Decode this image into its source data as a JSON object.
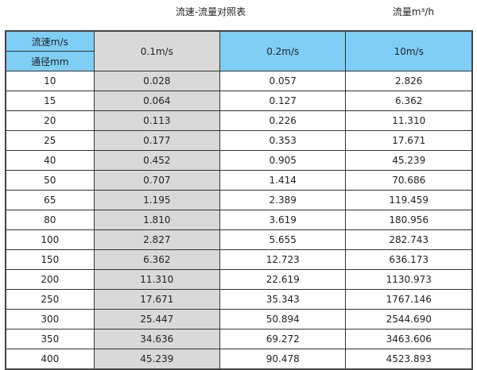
{
  "title": "流速-流量对照表",
  "unit_note": "流量m³/h",
  "header": {
    "velocity_label": "流速m/s",
    "diameter_label": "通径mm",
    "columns": [
      "0.1m/s",
      "0.2m/s",
      "10m/s"
    ]
  },
  "rows": [
    {
      "dn": "10",
      "v1": "0.028",
      "v2": "0.057",
      "v3": "2.826"
    },
    {
      "dn": "15",
      "v1": "0.064",
      "v2": "0.127",
      "v3": "6.362"
    },
    {
      "dn": "20",
      "v1": "0.113",
      "v2": "0.226",
      "v3": "11.310"
    },
    {
      "dn": "25",
      "v1": "0.177",
      "v2": "0.353",
      "v3": "17.671"
    },
    {
      "dn": "40",
      "v1": "0.452",
      "v2": "0.905",
      "v3": "45.239"
    },
    {
      "dn": "50",
      "v1": "0.707",
      "v2": "1.414",
      "v3": "70.686"
    },
    {
      "dn": "65",
      "v1": "1.195",
      "v2": "2.389",
      "v3": "119.459"
    },
    {
      "dn": "80",
      "v1": "1.810",
      "v2": "3.619",
      "v3": "180.956"
    },
    {
      "dn": "100",
      "v1": "2.827",
      "v2": "5.655",
      "v3": "282.743"
    },
    {
      "dn": "150",
      "v1": "6.362",
      "v2": "12.723",
      "v3": "636.173"
    },
    {
      "dn": "200",
      "v1": "11.310",
      "v2": "22.619",
      "v3": "1130.973"
    },
    {
      "dn": "250",
      "v1": "17.671",
      "v2": "35.343",
      "v3": "1767.146"
    },
    {
      "dn": "300",
      "v1": "25.447",
      "v2": "50.894",
      "v3": "2544.690"
    },
    {
      "dn": "350",
      "v1": "34.636",
      "v2": "69.272",
      "v3": "3463.606"
    },
    {
      "dn": "400",
      "v1": "45.239",
      "v2": "90.478",
      "v3": "4523.893"
    }
  ],
  "colors": {
    "header": "#7ecef5",
    "header_highlight": "#6cb1d6",
    "highlight_column": "#d9d9d9"
  }
}
